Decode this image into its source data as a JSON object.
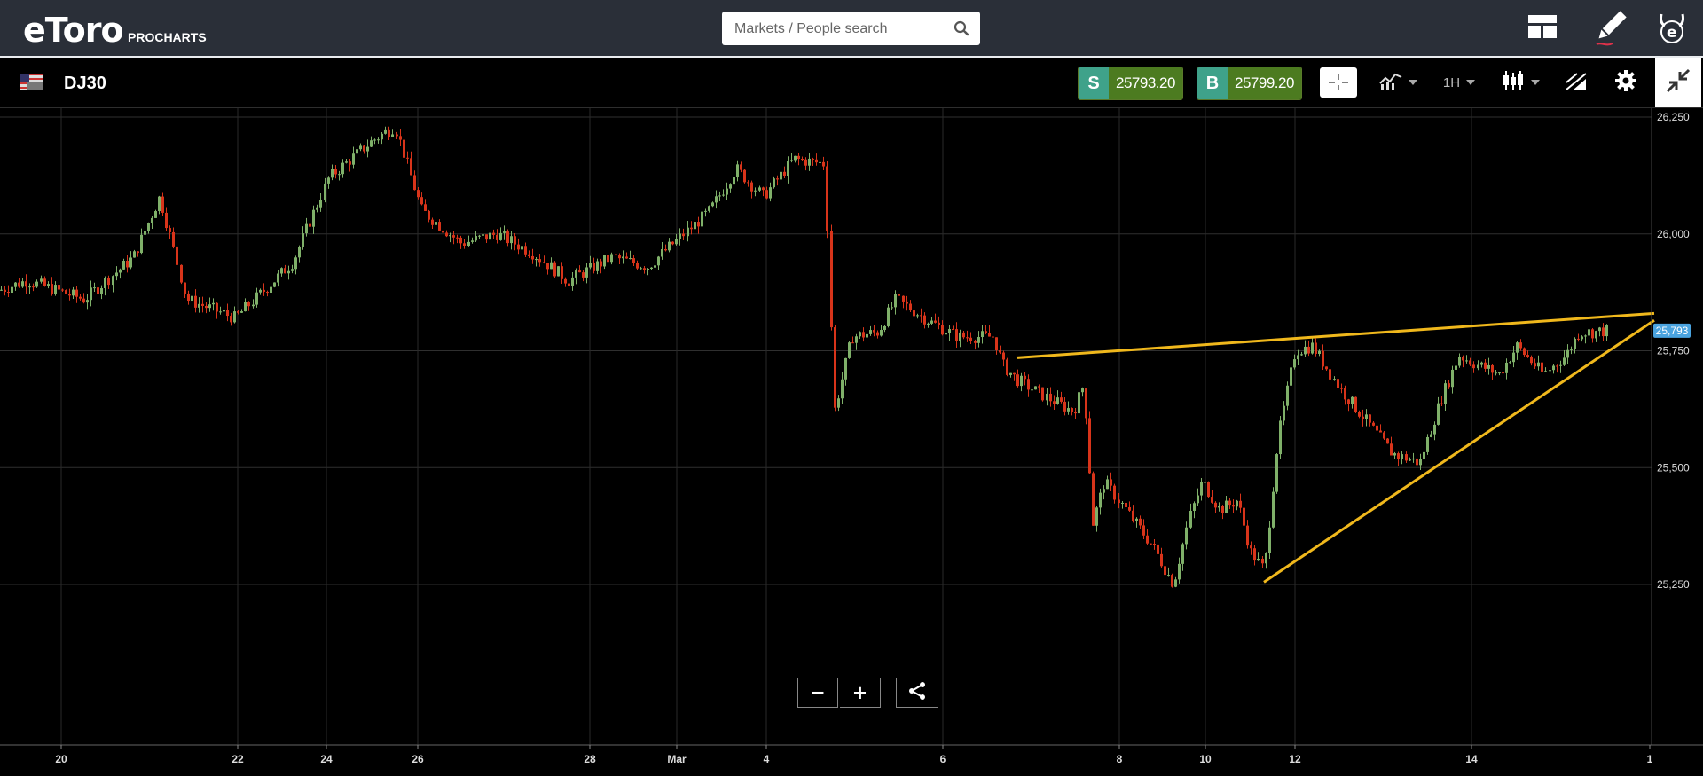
{
  "header": {
    "logo_text": "eToro",
    "logo_sub": "PROCHARTS",
    "search_placeholder": "Markets / People search"
  },
  "instrument": {
    "symbol": "DJ30",
    "sell_tag": "S",
    "sell_price": "25793.20",
    "buy_tag": "B",
    "buy_price": "25799.20",
    "timeframe": "1H",
    "current_price_badge": "25,793"
  },
  "icons": {
    "search": "search-icon",
    "layout": "layout-icon",
    "draw": "pencil-icon",
    "profile": "etoro-bull-icon",
    "crosshair": "crosshair-icon",
    "indicators": "indicators-icon",
    "chart_type": "candlestick-icon",
    "drawing_tools": "drawing-tools-icon",
    "settings": "gear-icon",
    "collapse": "collapse-icon",
    "share": "share-icon",
    "zoom_out": "minus-icon",
    "zoom_in": "plus-icon"
  },
  "colors": {
    "up": "#7fb069",
    "down": "#d8341a",
    "trendline": "#f0b81c",
    "topbar": "#2a2f38",
    "sell": "#3fa28a",
    "price_bg": "#4c7b20",
    "price_badge": "#4aa3df"
  },
  "chart_data": {
    "type": "candlestick",
    "interval": "1H",
    "y_tick_labels": [
      "26,250",
      "26,000",
      "25,750",
      "25,500",
      "25,250"
    ],
    "y_ticks": [
      26250,
      26000,
      25750,
      25500,
      25250
    ],
    "x_tick_labels": [
      "20",
      "22",
      "24",
      "26",
      "28",
      "Mar",
      "4",
      "6",
      "8",
      "10",
      "12",
      "14",
      "1"
    ],
    "ylim": [
      25200,
      26260
    ],
    "path_keypoints_close": [
      [
        0,
        25880
      ],
      [
        30,
        25900
      ],
      [
        95,
        25860
      ],
      [
        150,
        25950
      ],
      [
        180,
        26080
      ],
      [
        210,
        25860
      ],
      [
        265,
        25820
      ],
      [
        330,
        25940
      ],
      [
        370,
        26120
      ],
      [
        420,
        26200
      ],
      [
        445,
        26230
      ],
      [
        475,
        26050
      ],
      [
        520,
        25980
      ],
      [
        560,
        26000
      ],
      [
        600,
        25960
      ],
      [
        640,
        25900
      ],
      [
        690,
        25950
      ],
      [
        730,
        25930
      ],
      [
        800,
        26050
      ],
      [
        830,
        26140
      ],
      [
        860,
        26080
      ],
      [
        895,
        26160
      ],
      [
        930,
        26150
      ],
      [
        940,
        25620
      ],
      [
        960,
        25780
      ],
      [
        990,
        25790
      ],
      [
        1010,
        25860
      ],
      [
        1050,
        25810
      ],
      [
        1080,
        25780
      ],
      [
        1120,
        25780
      ],
      [
        1130,
        25720
      ],
      [
        1145,
        25690
      ],
      [
        1180,
        25650
      ],
      [
        1210,
        25620
      ],
      [
        1222,
        25680
      ],
      [
        1232,
        25380
      ],
      [
        1245,
        25470
      ],
      [
        1265,
        25420
      ],
      [
        1300,
        25330
      ],
      [
        1323,
        25250
      ],
      [
        1340,
        25390
      ],
      [
        1355,
        25470
      ],
      [
        1375,
        25410
      ],
      [
        1395,
        25430
      ],
      [
        1410,
        25320
      ],
      [
        1425,
        25280
      ],
      [
        1440,
        25560
      ],
      [
        1460,
        25750
      ],
      [
        1480,
        25760
      ],
      [
        1510,
        25670
      ],
      [
        1540,
        25600
      ],
      [
        1570,
        25530
      ],
      [
        1600,
        25510
      ],
      [
        1625,
        25650
      ],
      [
        1645,
        25740
      ],
      [
        1665,
        25720
      ],
      [
        1690,
        25700
      ],
      [
        1710,
        25760
      ],
      [
        1740,
        25700
      ],
      [
        1765,
        25740
      ],
      [
        1780,
        25790
      ],
      [
        1800,
        25790
      ],
      [
        1812,
        25793
      ]
    ],
    "trendlines": [
      {
        "from": [
          1147,
          25735
        ],
        "to": [
          1865,
          25830
        ]
      },
      {
        "from": [
          1425,
          25255
        ],
        "to": [
          1865,
          25815
        ]
      }
    ],
    "last_price": 25793
  },
  "controls": {
    "zoom_out_label": "−",
    "zoom_in_label": "+"
  }
}
